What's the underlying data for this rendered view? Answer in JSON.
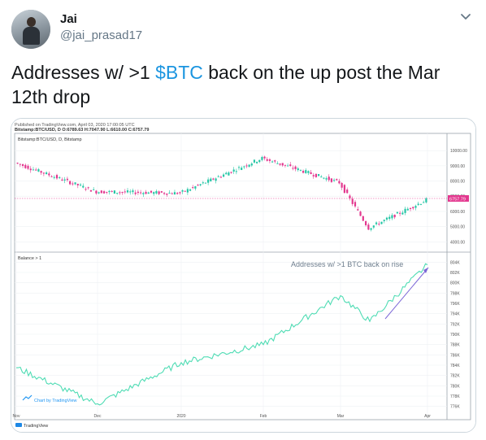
{
  "author": {
    "display_name": "Jai",
    "handle": "@jai_prasad17",
    "avatar_icon": "profile-photo"
  },
  "menu_icon": "chevron-down-icon",
  "tweet": {
    "text_before": "Addresses w/ >1 ",
    "cashtag": "$BTC",
    "text_after": " back on the up post the Mar 12th drop"
  },
  "chart": {
    "published": "Published on TradingView.com, April 03, 2020 17:00:05 UTC",
    "ohlc": "Bitstamp:BTC/USD, D O:6789.63 H:7047.90 L:6610.00 C:6757.79",
    "symbol": "Bitstamp:BTC/USD, D, Bitstamp",
    "lower_label": "Balance > 1",
    "annotation": "Addresses w/ >1 BTC back on rise",
    "watermark": "Chart by TradingView",
    "footer_logo": "TradingView",
    "colors": {
      "up": "#26c6a6",
      "down": "#e3388f",
      "balance": "#4fdcb4",
      "arrow": "#7b66d6",
      "annotation": "#6d7d8d",
      "price_line": "#e3388f"
    }
  },
  "chart_data": [
    {
      "type": "candlestick",
      "title": "Bitstamp:BTC/USD, D, Bitstamp",
      "x_tick_labels": [
        "Nov",
        "Dec",
        "2020",
        "Feb",
        "Mar",
        "Apr"
      ],
      "y_tick_labels": [
        "10000.00",
        "9000.00",
        "8000.00",
        "7000.00",
        "6000.00",
        "5000.00",
        "4000.00"
      ],
      "ylim": [
        3800,
        10600
      ],
      "last_price_label": "6757.79",
      "segments": [
        {
          "from": "Nov",
          "to": "Dec",
          "start": 9200,
          "end": 7300
        },
        {
          "from": "Dec",
          "to": "2020",
          "start": 7300,
          "end": 7200
        },
        {
          "from": "2020",
          "to": "Feb",
          "start": 7200,
          "end": 9500
        },
        {
          "from": "Feb",
          "to": "Mar",
          "start": 9500,
          "end": 7900
        },
        {
          "from": "Mar",
          "to": "Mar 12",
          "start": 7900,
          "end": 4900
        },
        {
          "from": "Mar 12",
          "to": "Apr",
          "start": 4900,
          "end": 6750
        }
      ]
    },
    {
      "type": "line",
      "title": "Balance > 1",
      "y_tick_labels": [
        "804K",
        "802K",
        "800K",
        "798K",
        "796K",
        "794K",
        "792K",
        "790K",
        "788K",
        "786K",
        "784K",
        "782K",
        "780K",
        "778K",
        "776K"
      ],
      "ylim": [
        775000,
        805000
      ],
      "points": [
        {
          "x": "Nov",
          "y": 783500
        },
        {
          "x": "Dec",
          "y": 776500
        },
        {
          "x": "2020",
          "y": 784500
        },
        {
          "x": "Feb",
          "y": 788000
        },
        {
          "x": "Mar",
          "y": 797500
        },
        {
          "x": "Mar 12",
          "y": 792500
        },
        {
          "x": "Apr",
          "y": 803500
        }
      ]
    }
  ]
}
